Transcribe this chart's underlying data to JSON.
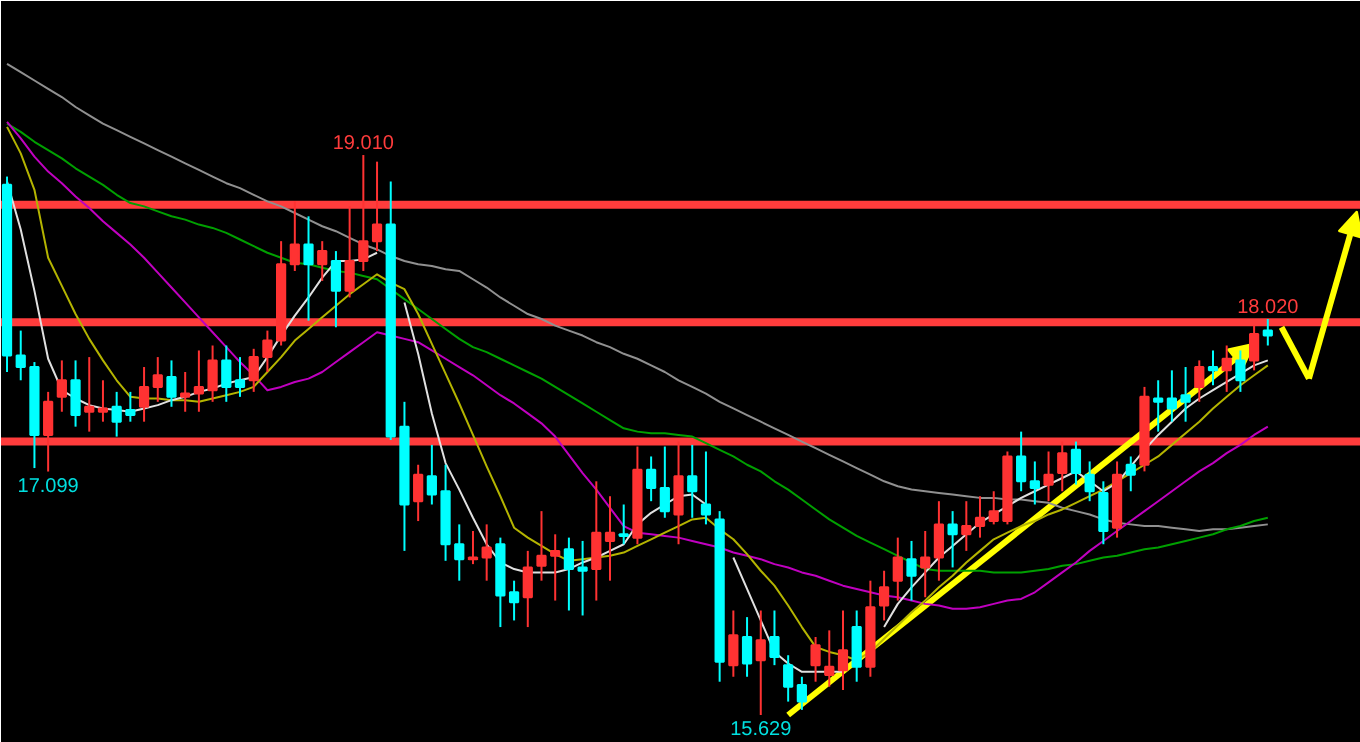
{
  "chart_data": {
    "type": "candlestick",
    "categories": [
      null,
      null,
      null,
      null,
      null,
      null,
      null,
      null,
      null,
      null,
      null,
      null,
      null,
      null,
      null,
      null,
      null,
      null,
      null,
      null,
      null,
      null,
      null,
      null,
      null,
      null,
      null,
      null,
      null,
      null,
      null,
      null,
      null,
      null,
      null,
      null,
      null,
      null,
      null,
      null,
      null,
      null,
      null,
      null,
      null,
      null,
      null,
      null,
      null,
      null,
      null,
      null,
      null,
      null,
      null,
      null,
      null,
      null,
      null,
      null,
      null,
      null,
      null,
      null,
      null,
      null,
      null,
      null,
      null,
      null,
      null,
      null,
      null,
      null,
      null,
      null,
      null,
      null,
      null,
      null,
      null,
      null,
      null,
      null,
      null,
      null,
      null,
      null,
      null,
      null,
      null,
      null,
      null
    ],
    "ylim": [
      15.46,
      19.94
    ],
    "tick_labels": false,
    "grid": false,
    "ohlc": [
      [
        18.83,
        18.88,
        17.7,
        17.8
      ],
      [
        17.8,
        17.95,
        17.65,
        17.73
      ],
      [
        17.73,
        17.76,
        17.12,
        17.32
      ],
      [
        17.32,
        17.58,
        17.099,
        17.52
      ],
      [
        17.55,
        17.77,
        17.46,
        17.65
      ],
      [
        17.65,
        17.77,
        17.37,
        17.44
      ],
      [
        17.46,
        17.79,
        17.34,
        17.49
      ],
      [
        17.46,
        17.65,
        17.4,
        17.48
      ],
      [
        17.49,
        17.58,
        17.31,
        17.4
      ],
      [
        17.47,
        17.58,
        17.4,
        17.44
      ],
      [
        17.49,
        17.73,
        17.4,
        17.61
      ],
      [
        17.61,
        17.79,
        17.52,
        17.68
      ],
      [
        17.67,
        17.77,
        17.49,
        17.55
      ],
      [
        17.55,
        17.7,
        17.46,
        17.57
      ],
      [
        17.57,
        17.83,
        17.46,
        17.61
      ],
      [
        17.59,
        17.86,
        17.52,
        17.77
      ],
      [
        17.77,
        17.86,
        17.52,
        17.61
      ],
      [
        17.65,
        17.79,
        17.55,
        17.61
      ],
      [
        17.65,
        17.84,
        17.58,
        17.79
      ],
      [
        17.79,
        17.95,
        17.7,
        17.89
      ],
      [
        17.89,
        18.49,
        17.86,
        18.35
      ],
      [
        18.35,
        18.73,
        18.31,
        18.47
      ],
      [
        18.47,
        18.64,
        18.01,
        18.35
      ],
      [
        18.35,
        18.49,
        18.25,
        18.43
      ],
      [
        18.37,
        18.43,
        17.97,
        18.19
      ],
      [
        18.19,
        18.7,
        18.15,
        18.37
      ],
      [
        18.37,
        19.01,
        18.31,
        18.49
      ],
      [
        18.49,
        18.97,
        18.43,
        18.59
      ],
      [
        18.59,
        18.85,
        17.29,
        17.31
      ],
      [
        17.37,
        17.52,
        16.62,
        16.9
      ],
      [
        16.92,
        17.14,
        16.8,
        17.08
      ],
      [
        17.07,
        17.26,
        16.9,
        16.96
      ],
      [
        16.98,
        17.14,
        16.56,
        16.66
      ],
      [
        16.66,
        16.78,
        16.44,
        16.57
      ],
      [
        16.57,
        16.74,
        16.54,
        16.58
      ],
      [
        16.58,
        16.78,
        16.44,
        16.64
      ],
      [
        16.66,
        16.7,
        16.16,
        16.35
      ],
      [
        16.37,
        16.44,
        16.2,
        16.31
      ],
      [
        16.34,
        16.62,
        16.16,
        16.52
      ],
      [
        16.53,
        16.86,
        16.44,
        16.59
      ],
      [
        16.59,
        16.72,
        16.32,
        16.62
      ],
      [
        16.63,
        16.7,
        16.26,
        16.51
      ],
      [
        16.52,
        16.68,
        16.23,
        16.5
      ],
      [
        16.51,
        17.04,
        16.32,
        16.73
      ],
      [
        16.68,
        16.95,
        16.44,
        16.73
      ],
      [
        16.72,
        16.9,
        16.66,
        16.71
      ],
      [
        16.7,
        17.25,
        16.66,
        17.11
      ],
      [
        17.11,
        17.19,
        16.92,
        17.0
      ],
      [
        17.0,
        17.25,
        16.82,
        16.86
      ],
      [
        16.84,
        17.28,
        16.66,
        17.07
      ],
      [
        17.07,
        17.26,
        16.82,
        16.98
      ],
      [
        16.9,
        17.22,
        16.78,
        16.84
      ],
      [
        16.81,
        16.86,
        15.83,
        15.95
      ],
      [
        15.93,
        16.26,
        15.86,
        16.11
      ],
      [
        16.1,
        16.22,
        15.86,
        15.94
      ],
      [
        15.96,
        16.26,
        15.629,
        16.08
      ],
      [
        16.1,
        16.26,
        15.93,
        15.98
      ],
      [
        15.93,
        15.99,
        15.71,
        15.8
      ],
      [
        15.81,
        15.86,
        15.66,
        15.71
      ],
      [
        15.93,
        16.1,
        15.83,
        16.05
      ],
      [
        15.87,
        16.14,
        15.8,
        15.92
      ],
      [
        15.9,
        16.26,
        15.78,
        16.02
      ],
      [
        16.16,
        16.26,
        15.83,
        15.92
      ],
      [
        15.92,
        16.44,
        15.86,
        16.28
      ],
      [
        16.29,
        16.5,
        16.2,
        16.4
      ],
      [
        16.44,
        16.7,
        16.32,
        16.58
      ],
      [
        16.57,
        16.68,
        16.32,
        16.47
      ],
      [
        16.52,
        16.74,
        16.34,
        16.58
      ],
      [
        16.58,
        16.92,
        16.44,
        16.78
      ],
      [
        16.78,
        16.86,
        16.52,
        16.72
      ],
      [
        16.72,
        16.92,
        16.62,
        16.77
      ],
      [
        16.77,
        16.95,
        16.7,
        16.82
      ],
      [
        16.8,
        16.98,
        16.78,
        16.86
      ],
      [
        16.8,
        17.22,
        16.78,
        17.19
      ],
      [
        17.19,
        17.34,
        16.98,
        17.04
      ],
      [
        17.04,
        17.16,
        16.9,
        17.0
      ],
      [
        17.02,
        17.22,
        16.92,
        17.08
      ],
      [
        17.09,
        17.28,
        16.98,
        17.21
      ],
      [
        17.23,
        17.28,
        17.02,
        17.09
      ],
      [
        17.08,
        17.16,
        16.92,
        16.98
      ],
      [
        16.97,
        17.04,
        16.66,
        16.74
      ],
      [
        16.76,
        17.16,
        16.7,
        17.08
      ],
      [
        17.14,
        17.19,
        16.98,
        17.08
      ],
      [
        17.14,
        17.61,
        17.1,
        17.55
      ],
      [
        17.54,
        17.65,
        17.34,
        17.52
      ],
      [
        17.54,
        17.71,
        17.4,
        17.48
      ],
      [
        17.56,
        17.73,
        17.4,
        17.52
      ],
      [
        17.61,
        17.77,
        17.52,
        17.73
      ],
      [
        17.73,
        17.83,
        17.62,
        17.71
      ],
      [
        17.71,
        17.86,
        17.58,
        17.78
      ],
      [
        17.77,
        17.83,
        17.58,
        17.65
      ],
      [
        17.77,
        17.98,
        17.71,
        17.93
      ],
      [
        17.95,
        18.02,
        17.86,
        17.92
      ]
    ],
    "colors": [
      "#00ffff",
      "#00ffff",
      "#00ffff",
      "#ff3232",
      "#ff3232",
      "#00ffff",
      "#ff3232",
      "#ff3232",
      "#00ffff",
      "#00ffff",
      "#ff3232",
      "#ff3232",
      "#00ffff",
      "#ff3232",
      "#ff3232",
      "#ff3232",
      "#00ffff",
      "#00ffff",
      "#ff3232",
      "#ff3232",
      "#ff3232",
      "#ff3232",
      "#00ffff",
      "#ff3232",
      "#00ffff",
      "#ff3232",
      "#ff3232",
      "#ff3232",
      "#00ffff",
      "#00ffff",
      "#ff3232",
      "#00ffff",
      "#00ffff",
      "#00ffff",
      "#ff3232",
      "#ff3232",
      "#00ffff",
      "#00ffff",
      "#ff3232",
      "#ff3232",
      "#ff3232",
      "#00ffff",
      "#00ffff",
      "#ff3232",
      "#ff3232",
      "#00ffff",
      "#ff3232",
      "#00ffff",
      "#00ffff",
      "#ff3232",
      "#00ffff",
      "#00ffff",
      "#00ffff",
      "#ff3232",
      "#00ffff",
      "#ff3232",
      "#00ffff",
      "#00ffff",
      "#00ffff",
      "#ff3232",
      "#ff3232",
      "#ff3232",
      "#00ffff",
      "#ff3232",
      "#ff3232",
      "#ff3232",
      "#00ffff",
      "#ff3232",
      "#ff3232",
      "#00ffff",
      "#ff3232",
      "#ff3232",
      "#ff3232",
      "#ff3232",
      "#00ffff",
      "#00ffff",
      "#ff3232",
      "#ff3232",
      "#00ffff",
      "#00ffff",
      "#00ffff",
      "#ff3232",
      "#00ffff",
      "#ff3232",
      "#00ffff",
      "#00ffff",
      "#00ffff",
      "#ff3232",
      "#00ffff",
      "#ff3232",
      "#00ffff",
      "#ff3232",
      "#00ffff"
    ],
    "series": [
      {
        "type": "line",
        "color": "#909090",
        "values": [
          19.56,
          19.51,
          19.46,
          19.41,
          19.36,
          19.3,
          19.25,
          19.2,
          19.16,
          19.12,
          19.08,
          19.04,
          19.0,
          18.96,
          18.92,
          18.88,
          18.84,
          18.81,
          18.77,
          18.73,
          18.7,
          18.66,
          18.62,
          18.58,
          18.55,
          18.51,
          18.47,
          18.44,
          18.4,
          18.37,
          18.35,
          18.34,
          18.32,
          18.31,
          18.26,
          18.21,
          18.15,
          18.1,
          18.05,
          18.02,
          17.98,
          17.95,
          17.92,
          17.88,
          17.85,
          17.81,
          17.78,
          17.74,
          17.7,
          17.65,
          17.61,
          17.57,
          17.52,
          17.48,
          17.44,
          17.4,
          17.36,
          17.32,
          17.28,
          17.24,
          17.2,
          17.16,
          17.12,
          17.08,
          17.04,
          17.01,
          16.99,
          16.98,
          16.97,
          16.96,
          16.95,
          16.94,
          16.94,
          16.93,
          16.93,
          16.92,
          16.91,
          16.88,
          16.86,
          16.84,
          16.81,
          16.79,
          16.78,
          16.77,
          16.77,
          16.76,
          16.75,
          16.74,
          16.75,
          16.75,
          16.76,
          16.77,
          16.78
        ]
      },
      {
        "type": "line",
        "color": "#00a000",
        "values": [
          19.2,
          19.15,
          19.09,
          19.04,
          18.99,
          18.93,
          18.88,
          18.83,
          18.77,
          18.72,
          18.7,
          18.67,
          18.64,
          18.62,
          18.59,
          18.57,
          18.54,
          18.5,
          18.46,
          18.42,
          18.39,
          18.36,
          18.35,
          18.33,
          18.31,
          18.3,
          18.28,
          18.26,
          18.2,
          18.14,
          18.08,
          18.02,
          17.96,
          17.9,
          17.85,
          17.82,
          17.78,
          17.74,
          17.7,
          17.66,
          17.61,
          17.56,
          17.51,
          17.46,
          17.41,
          17.36,
          17.34,
          17.33,
          17.33,
          17.32,
          17.31,
          17.27,
          17.23,
          17.19,
          17.14,
          17.1,
          17.04,
          16.99,
          16.93,
          16.87,
          16.81,
          16.76,
          16.71,
          16.67,
          16.63,
          16.59,
          16.55,
          16.51,
          16.5,
          16.5,
          16.5,
          16.5,
          16.49,
          16.49,
          16.49,
          16.5,
          16.51,
          16.53,
          16.54,
          16.56,
          16.58,
          16.59,
          16.61,
          16.63,
          16.64,
          16.66,
          16.68,
          16.7,
          16.72,
          16.75,
          16.77,
          16.8,
          16.82
        ]
      },
      {
        "type": "line",
        "color": "#c000c0",
        "values": [
          19.21,
          19.11,
          19.0,
          18.91,
          18.84,
          18.76,
          18.69,
          18.61,
          18.54,
          18.47,
          18.39,
          18.3,
          18.21,
          18.12,
          18.03,
          17.94,
          17.85,
          17.76,
          17.68,
          17.59,
          17.61,
          17.64,
          17.66,
          17.7,
          17.76,
          17.82,
          17.88,
          17.94,
          17.92,
          17.9,
          17.88,
          17.83,
          17.78,
          17.73,
          17.68,
          17.62,
          17.56,
          17.51,
          17.45,
          17.39,
          17.31,
          17.2,
          17.09,
          16.99,
          16.88,
          16.77,
          16.73,
          16.72,
          16.71,
          16.7,
          16.68,
          16.66,
          16.64,
          16.61,
          16.59,
          16.57,
          16.54,
          16.52,
          16.49,
          16.47,
          16.44,
          16.41,
          16.39,
          16.37,
          16.35,
          16.34,
          16.32,
          16.3,
          16.29,
          16.27,
          16.27,
          16.28,
          16.3,
          16.32,
          16.33,
          16.37,
          16.43,
          16.49,
          16.55,
          16.62,
          16.68,
          16.74,
          16.8,
          16.86,
          16.92,
          16.98,
          17.04,
          17.1,
          17.15,
          17.21,
          17.26,
          17.32,
          17.37
        ]
      },
      {
        "type": "line",
        "color": "#b4b400",
        "values": [
          19.18,
          19.02,
          18.8,
          18.39,
          18.22,
          18.05,
          17.9,
          17.77,
          17.65,
          17.55,
          17.54,
          17.54,
          17.53,
          17.53,
          17.52,
          17.54,
          17.56,
          17.58,
          17.61,
          17.7,
          17.79,
          17.89,
          17.96,
          18.03,
          18.1,
          18.17,
          18.23,
          18.29,
          18.24,
          18.2,
          18.05,
          17.87,
          17.69,
          17.51,
          17.32,
          17.13,
          16.95,
          16.76,
          16.7,
          16.65,
          16.6,
          16.56,
          16.57,
          16.58,
          16.59,
          16.61,
          16.65,
          16.69,
          16.73,
          16.77,
          16.81,
          16.82,
          16.75,
          16.69,
          16.6,
          16.5,
          16.41,
          16.29,
          16.16,
          16.04,
          16.01,
          15.99,
          15.96,
          16.01,
          16.09,
          16.17,
          16.25,
          16.32,
          16.4,
          16.47,
          16.55,
          16.62,
          16.69,
          16.73,
          16.77,
          16.8,
          16.84,
          16.87,
          16.91,
          16.95,
          16.99,
          17.04,
          17.09,
          17.14,
          17.19,
          17.26,
          17.33,
          17.4,
          17.48,
          17.55,
          17.62,
          17.68,
          17.74
        ]
      },
      {
        "type": "line",
        "color": "#e0e0e0",
        "values": [
          18.85,
          18.56,
          18.19,
          17.78,
          17.59,
          17.54,
          17.5,
          17.48,
          17.47,
          17.46,
          17.48,
          17.5,
          17.53,
          17.55,
          17.58,
          17.6,
          17.63,
          17.65,
          17.67,
          17.79,
          17.92,
          18.04,
          18.15,
          18.27,
          18.37,
          18.37,
          18.38,
          18.42,
          null,
          18.12,
          17.81,
          17.45,
          17.15,
          16.99,
          16.82,
          16.66,
          16.55,
          16.51,
          16.49,
          16.49,
          16.49,
          16.51,
          16.55,
          16.58,
          16.62,
          16.66,
          16.78,
          16.85,
          16.9,
          16.95,
          16.96,
          16.9,
          null,
          16.58,
          16.39,
          16.2,
          16.01,
          15.94,
          15.89,
          15.89,
          15.89,
          15.89,
          null,
          null,
          16.16,
          16.3,
          16.4,
          16.49,
          16.58,
          16.65,
          16.72,
          16.79,
          16.84,
          16.89,
          16.94,
          16.98,
          17.02,
          17.06,
          17.1,
          17.04,
          16.98,
          17.03,
          17.13,
          17.23,
          17.32,
          17.4,
          17.48,
          17.54,
          17.59,
          17.64,
          17.69,
          17.74,
          17.77
        ]
      }
    ],
    "ref_lines": [
      {
        "axis": "y",
        "value": 18.71,
        "color": "#ff3c3c"
      },
      {
        "axis": "y",
        "value": 18.0,
        "color": "#ff3c3c"
      },
      {
        "axis": "y",
        "value": 17.28,
        "color": "#ff3c3c"
      }
    ],
    "annotations": [
      {
        "text": "19.010",
        "y": 19.01
      },
      {
        "text": "18.020",
        "y": 18.02
      },
      {
        "text": "17.099",
        "y": 17.099
      },
      {
        "text": "15.629",
        "y": 15.629
      }
    ]
  }
}
